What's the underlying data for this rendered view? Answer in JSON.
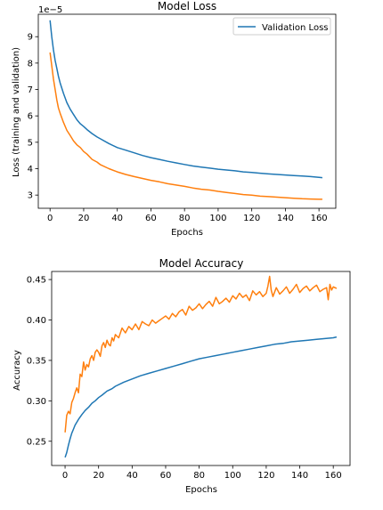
{
  "chart_data": [
    {
      "type": "line",
      "title": "Model Loss",
      "xlabel": "Epochs",
      "ylabel": "Loss (training and validation)",
      "y_offset_label": "1e−5",
      "xlim": [
        -7,
        170
      ],
      "ylim": [
        2.5,
        9.85
      ],
      "xticks": [
        0,
        20,
        40,
        60,
        80,
        100,
        120,
        140,
        160
      ],
      "yticks": [
        3,
        4,
        5,
        6,
        7,
        8,
        9
      ],
      "grid": false,
      "legend": {
        "location": "top-right",
        "entries": [
          "Validation Loss"
        ]
      },
      "series": [
        {
          "color": "#ff7f0e",
          "x": [
            0,
            1,
            2,
            3,
            4,
            5,
            6,
            8,
            10,
            12,
            14,
            16,
            18,
            20,
            22,
            25,
            28,
            30,
            35,
            40,
            45,
            50,
            55,
            60,
            65,
            70,
            75,
            80,
            85,
            90,
            95,
            100,
            105,
            110,
            115,
            120,
            125,
            130,
            135,
            140,
            145,
            150,
            155,
            160,
            162
          ],
          "y": [
            8.4,
            7.9,
            7.4,
            7.0,
            6.6,
            6.3,
            6.1,
            5.75,
            5.45,
            5.25,
            5.05,
            4.9,
            4.8,
            4.65,
            4.55,
            4.35,
            4.25,
            4.15,
            4.0,
            3.88,
            3.78,
            3.7,
            3.63,
            3.56,
            3.5,
            3.43,
            3.38,
            3.33,
            3.27,
            3.22,
            3.19,
            3.14,
            3.1,
            3.06,
            3.02,
            3.0,
            2.96,
            2.94,
            2.92,
            2.9,
            2.88,
            2.86,
            2.85,
            2.84,
            2.84
          ]
        },
        {
          "name": "Validation Loss",
          "color": "#1f77b4",
          "x": [
            0,
            1,
            2,
            3,
            4,
            5,
            6,
            8,
            10,
            12,
            14,
            16,
            18,
            20,
            22,
            25,
            28,
            30,
            35,
            40,
            45,
            50,
            55,
            60,
            65,
            70,
            75,
            80,
            85,
            90,
            95,
            100,
            105,
            110,
            115,
            120,
            125,
            130,
            135,
            140,
            145,
            150,
            155,
            160,
            162
          ],
          "y": [
            9.62,
            9.0,
            8.5,
            8.1,
            7.8,
            7.5,
            7.25,
            6.85,
            6.5,
            6.25,
            6.05,
            5.85,
            5.7,
            5.6,
            5.48,
            5.33,
            5.2,
            5.13,
            4.95,
            4.8,
            4.7,
            4.6,
            4.5,
            4.42,
            4.35,
            4.28,
            4.22,
            4.16,
            4.1,
            4.06,
            4.02,
            3.98,
            3.95,
            3.92,
            3.88,
            3.86,
            3.83,
            3.8,
            3.78,
            3.76,
            3.74,
            3.72,
            3.7,
            3.67,
            3.66
          ]
        }
      ]
    },
    {
      "type": "line",
      "title": "Model Accuracy",
      "xlabel": "Epochs",
      "ylabel": "Accuracy",
      "xlim": [
        -8,
        170
      ],
      "ylim": [
        0.22,
        0.46
      ],
      "xticks": [
        0,
        20,
        40,
        60,
        80,
        100,
        120,
        140,
        160
      ],
      "yticks": [
        0.25,
        0.3,
        0.35,
        0.4,
        0.45
      ],
      "ytick_labels": [
        "0.25",
        "0.30",
        "0.35",
        "0.40",
        "0.45"
      ],
      "grid": false,
      "series": [
        {
          "color": "#1f77b4",
          "x": [
            0,
            1,
            2,
            3,
            4,
            5,
            6,
            8,
            10,
            12,
            14,
            16,
            18,
            20,
            22,
            25,
            28,
            30,
            35,
            40,
            45,
            50,
            55,
            60,
            65,
            70,
            75,
            80,
            85,
            90,
            95,
            100,
            105,
            110,
            115,
            120,
            125,
            130,
            135,
            140,
            145,
            150,
            155,
            160,
            162
          ],
          "y": [
            0.23,
            0.236,
            0.245,
            0.253,
            0.26,
            0.265,
            0.27,
            0.277,
            0.283,
            0.288,
            0.292,
            0.297,
            0.3,
            0.304,
            0.307,
            0.312,
            0.315,
            0.318,
            0.323,
            0.327,
            0.331,
            0.334,
            0.337,
            0.34,
            0.343,
            0.346,
            0.349,
            0.352,
            0.354,
            0.356,
            0.358,
            0.36,
            0.362,
            0.364,
            0.366,
            0.368,
            0.37,
            0.371,
            0.373,
            0.374,
            0.375,
            0.376,
            0.377,
            0.378,
            0.379
          ]
        },
        {
          "color": "#ff7f0e",
          "x": [
            0,
            1,
            2,
            3,
            4,
            5,
            6,
            7,
            8,
            9,
            10,
            11,
            12,
            13,
            14,
            15,
            16,
            17,
            18,
            19,
            20,
            21,
            22,
            23,
            24,
            25,
            26,
            27,
            28,
            29,
            30,
            32,
            34,
            36,
            38,
            40,
            42,
            44,
            46,
            48,
            50,
            52,
            54,
            56,
            58,
            60,
            62,
            64,
            66,
            68,
            70,
            72,
            74,
            76,
            78,
            80,
            82,
            84,
            86,
            88,
            90,
            92,
            94,
            96,
            98,
            100,
            102,
            104,
            106,
            108,
            110,
            112,
            114,
            116,
            118,
            120,
            121,
            122,
            123,
            124,
            126,
            128,
            130,
            132,
            134,
            136,
            138,
            140,
            142,
            144,
            146,
            148,
            150,
            152,
            154,
            156,
            157,
            158,
            159,
            160,
            162
          ],
          "y": [
            0.261,
            0.282,
            0.287,
            0.284,
            0.298,
            0.303,
            0.31,
            0.316,
            0.31,
            0.333,
            0.33,
            0.348,
            0.338,
            0.345,
            0.342,
            0.352,
            0.356,
            0.35,
            0.36,
            0.363,
            0.36,
            0.355,
            0.368,
            0.372,
            0.366,
            0.375,
            0.37,
            0.368,
            0.378,
            0.374,
            0.382,
            0.378,
            0.39,
            0.384,
            0.392,
            0.388,
            0.395,
            0.388,
            0.398,
            0.395,
            0.393,
            0.4,
            0.396,
            0.399,
            0.402,
            0.405,
            0.401,
            0.408,
            0.404,
            0.41,
            0.413,
            0.406,
            0.417,
            0.412,
            0.415,
            0.42,
            0.414,
            0.419,
            0.423,
            0.417,
            0.428,
            0.42,
            0.423,
            0.427,
            0.422,
            0.43,
            0.426,
            0.433,
            0.428,
            0.431,
            0.424,
            0.436,
            0.431,
            0.435,
            0.429,
            0.433,
            0.442,
            0.454,
            0.437,
            0.429,
            0.44,
            0.432,
            0.436,
            0.441,
            0.433,
            0.438,
            0.444,
            0.434,
            0.439,
            0.442,
            0.436,
            0.44,
            0.443,
            0.435,
            0.438,
            0.44,
            0.425,
            0.444,
            0.437,
            0.441,
            0.439
          ]
        }
      ]
    }
  ]
}
